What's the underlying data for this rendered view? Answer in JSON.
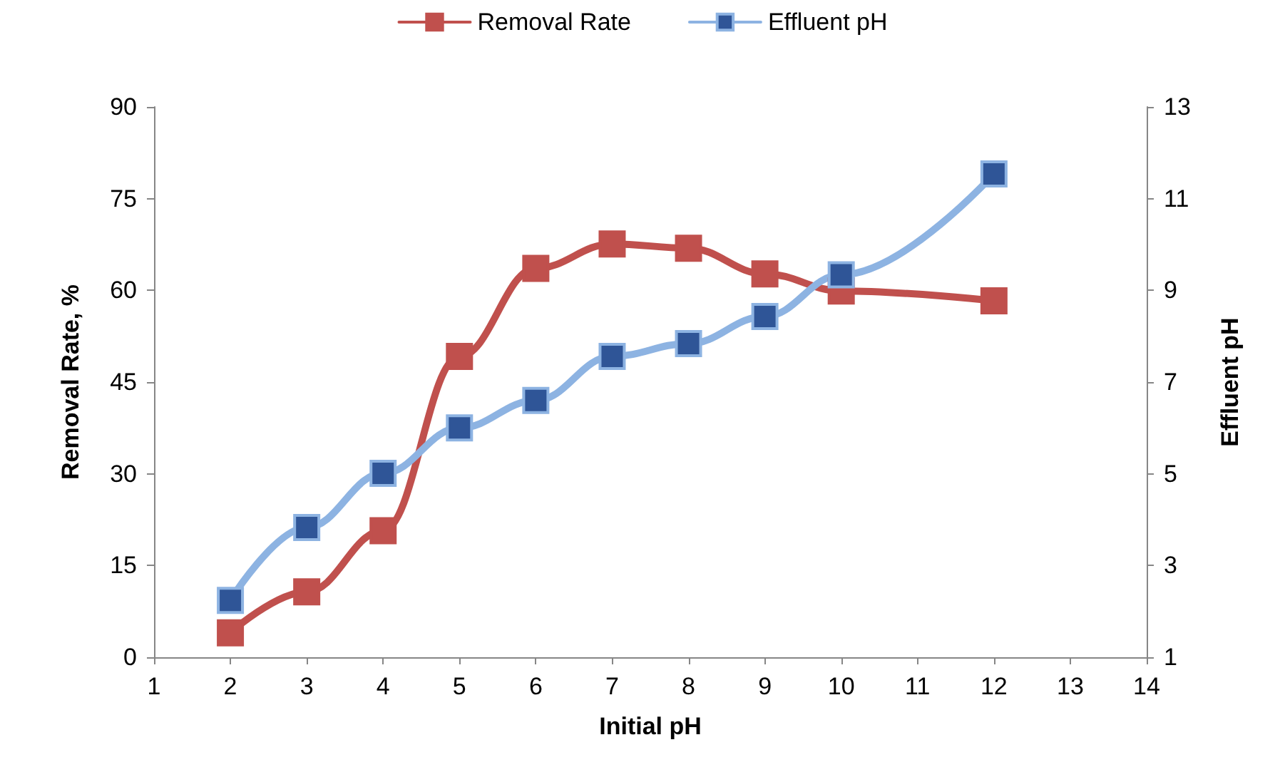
{
  "chart_data": {
    "type": "line",
    "xlabel": "Initial pH",
    "ylabel": "Removal Rate, %",
    "y2label": "Effluent pH",
    "x": [
      2,
      3,
      4,
      5,
      6,
      7,
      8,
      9,
      10,
      12
    ],
    "series": [
      {
        "name": "Removal Rate",
        "color": "#c0504d",
        "values": [
          4,
          10.7,
          20.7,
          49.2,
          63.6,
          67.6,
          66.9,
          62.7,
          59.9,
          58.3
        ]
      },
      {
        "name": "Effluent pH",
        "color": "#8db3e2",
        "axis": "y2",
        "values": [
          2.24,
          3.83,
          5.01,
          6.0,
          6.6,
          7.56,
          7.84,
          8.43,
          9.34,
          11.54
        ]
      }
    ],
    "xlim": [
      1,
      14
    ],
    "xticks": [
      1,
      2,
      3,
      4,
      5,
      6,
      7,
      8,
      9,
      10,
      11,
      12,
      13,
      14
    ],
    "ylim": [
      0,
      90
    ],
    "yticks": [
      0,
      15,
      30,
      45,
      60,
      75,
      90
    ],
    "y2lim": [
      1,
      13
    ],
    "y2ticks": [
      1,
      3,
      5,
      7,
      9,
      11,
      13
    ],
    "grid": false,
    "legend": "top",
    "marker": "square",
    "line_style": "solid"
  }
}
